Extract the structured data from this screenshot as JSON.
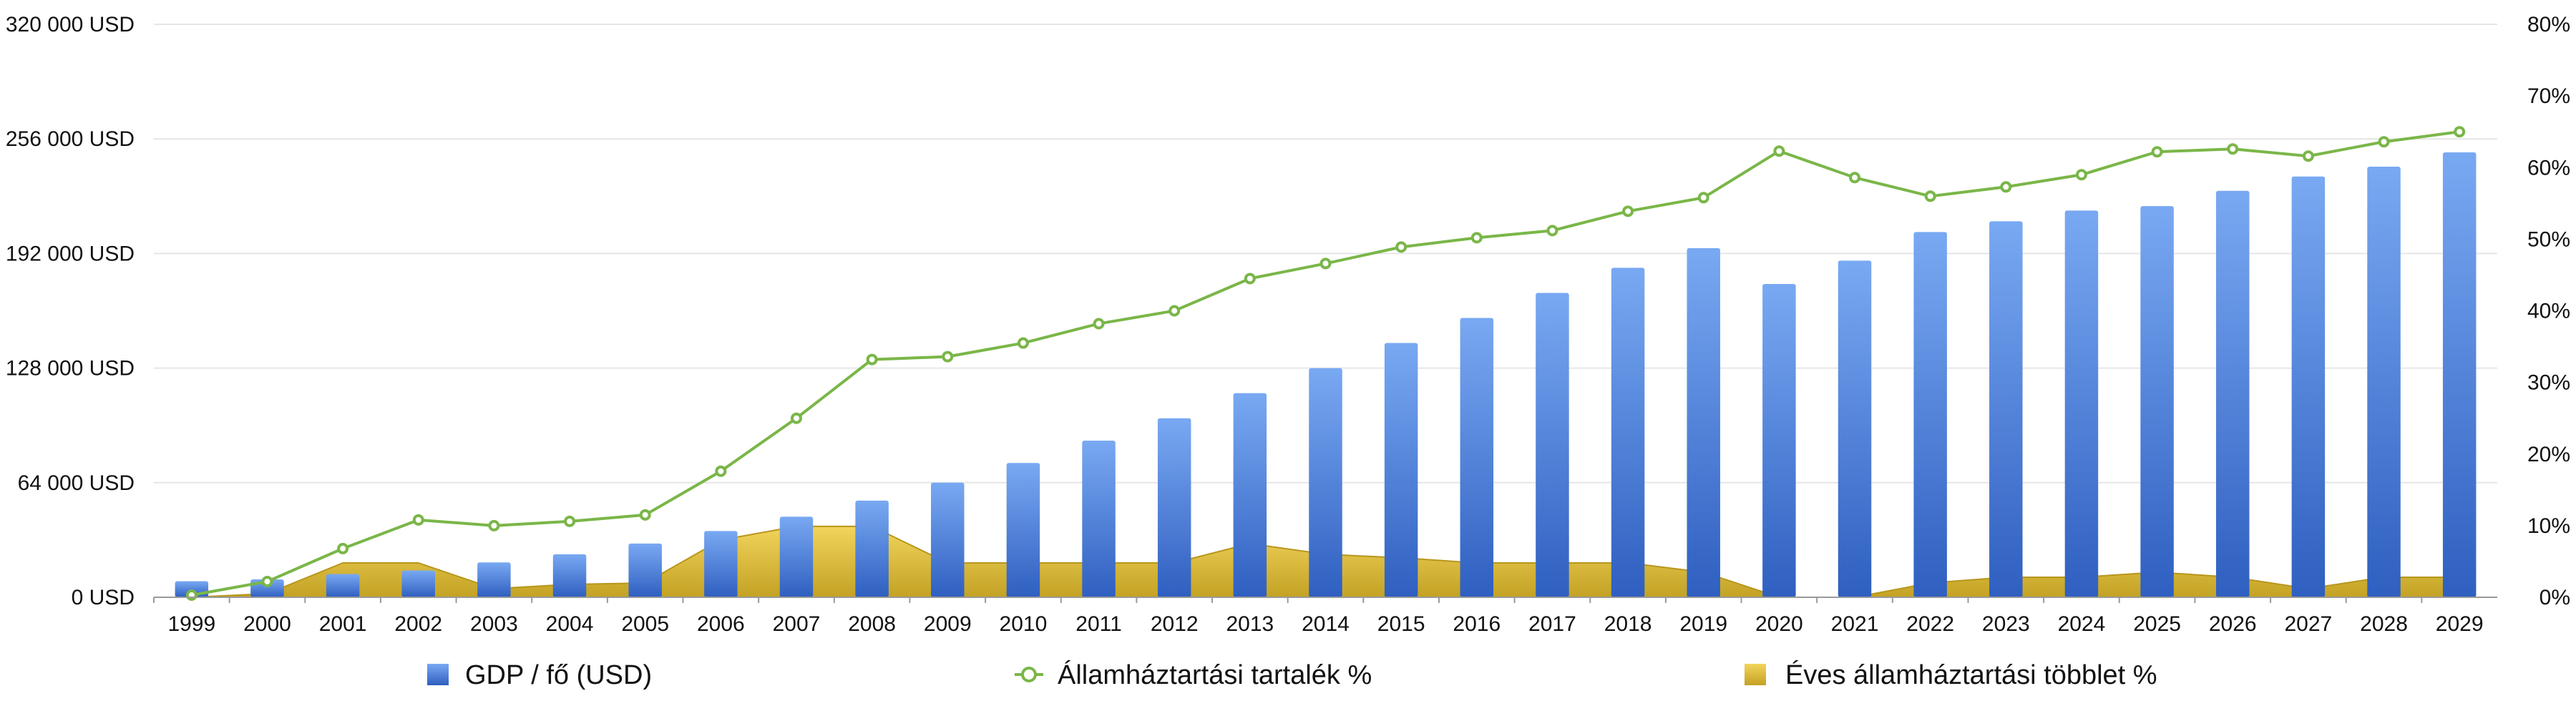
{
  "chart_data": {
    "type": "bar",
    "categories": [
      "1999",
      "2000",
      "2001",
      "2002",
      "2003",
      "2004",
      "2005",
      "2006",
      "2007",
      "2008",
      "2009",
      "2010",
      "2011",
      "2012",
      "2013",
      "2014",
      "2015",
      "2016",
      "2017",
      "2018",
      "2019",
      "2020",
      "2021",
      "2022",
      "2023",
      "2024",
      "2025",
      "2026",
      "2027",
      "2028",
      "2029"
    ],
    "y_left": {
      "min": 0,
      "max": 320000,
      "ticks": [
        0,
        64000,
        128000,
        192000,
        256000,
        320000
      ],
      "tick_labels": [
        "0 USD",
        "64 000 USD",
        "128 000 USD",
        "192 000 USD",
        "256 000 USD",
        "320 000 USD"
      ]
    },
    "y_right": {
      "min": 0,
      "max": 80,
      "ticks": [
        0,
        10,
        20,
        30,
        40,
        50,
        60,
        70,
        80
      ],
      "tick_labels": [
        "0%",
        "10%",
        "20%",
        "30%",
        "40%",
        "50%",
        "60%",
        "70%",
        "80%"
      ]
    },
    "series": [
      {
        "name": "GDP / fő (USD)",
        "type": "bar",
        "axis": "left",
        "color_top": "#79a9f2",
        "color_bottom": "#2f5fc0",
        "values": [
          9000,
          10000,
          13000,
          15000,
          19500,
          24000,
          30000,
          37000,
          45000,
          54000,
          64000,
          75000,
          87500,
          100000,
          114000,
          128000,
          142000,
          156000,
          170000,
          184000,
          195000,
          175000,
          188000,
          204000,
          210000,
          216000,
          218500,
          227000,
          235000,
          240500,
          248500
        ]
      },
      {
        "name": "Államháztartási tartalék %",
        "type": "line",
        "axis": "right",
        "color": "#7ab648",
        "values": [
          0.3,
          2.2,
          6.8,
          10.8,
          10.0,
          10.6,
          11.5,
          17.6,
          25.0,
          33.2,
          33.6,
          35.5,
          38.2,
          40.0,
          44.5,
          46.6,
          48.9,
          50.2,
          51.2,
          53.9,
          55.8,
          62.3,
          58.6,
          56.0,
          57.3,
          59.0,
          62.2,
          62.6,
          61.6,
          63.6,
          65.0
        ]
      },
      {
        "name": "Éves államháztartási többlet %",
        "type": "area",
        "axis": "right",
        "color_top": "#f2d45c",
        "color_bottom": "#c3a224",
        "values": [
          0,
          0.5,
          4.8,
          4.8,
          1.2,
          1.8,
          2.0,
          8.0,
          9.9,
          9.9,
          4.8,
          4.8,
          4.8,
          4.8,
          7.5,
          6.0,
          5.5,
          4.8,
          4.8,
          4.8,
          3.5,
          0,
          0,
          2.0,
          2.8,
          2.8,
          3.5,
          2.8,
          1.2,
          2.8,
          2.8
        ]
      }
    ],
    "grid": true,
    "legend_position": "bottom"
  }
}
